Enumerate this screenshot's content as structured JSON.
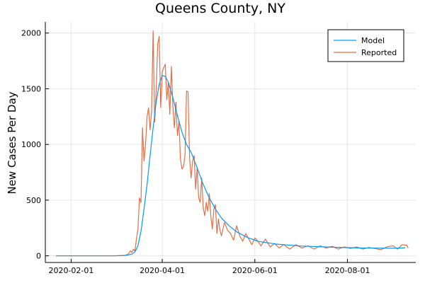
{
  "chart_data": {
    "type": "line",
    "title": "Queens County, NY",
    "xlabel": "",
    "ylabel": "New Cases Per Day",
    "x_axis_kind": "date",
    "xlim": [
      "2020-01-15",
      "2020-09-15"
    ],
    "ylim": [
      -60,
      2100
    ],
    "grid": true,
    "legend_position": "top-right",
    "x_ticks": [
      {
        "label": "2020-02-01",
        "value": "2020-02-01"
      },
      {
        "label": "2020-04-01",
        "value": "2020-04-01"
      },
      {
        "label": "2020-06-01",
        "value": "2020-06-01"
      },
      {
        "label": "2020-08-01",
        "value": "2020-08-01"
      }
    ],
    "y_ticks": [
      0,
      500,
      1000,
      1500,
      2000
    ],
    "series": [
      {
        "name": "Model",
        "color": "#009af9",
        "points": [
          [
            "2020-01-22",
            0
          ],
          [
            "2020-02-15",
            0
          ],
          [
            "2020-03-01",
            0
          ],
          [
            "2020-03-08",
            3
          ],
          [
            "2020-03-12",
            15
          ],
          [
            "2020-03-14",
            35
          ],
          [
            "2020-03-16",
            90
          ],
          [
            "2020-03-18",
            220
          ],
          [
            "2020-03-20",
            420
          ],
          [
            "2020-03-22",
            640
          ],
          [
            "2020-03-24",
            900
          ],
          [
            "2020-03-26",
            1150
          ],
          [
            "2020-03-28",
            1380
          ],
          [
            "2020-03-30",
            1540
          ],
          [
            "2020-04-01",
            1620
          ],
          [
            "2020-04-03",
            1610
          ],
          [
            "2020-04-05",
            1560
          ],
          [
            "2020-04-08",
            1420
          ],
          [
            "2020-04-11",
            1260
          ],
          [
            "2020-04-14",
            1110
          ],
          [
            "2020-04-17",
            1000
          ],
          [
            "2020-04-20",
            930
          ],
          [
            "2020-04-24",
            790
          ],
          [
            "2020-04-28",
            640
          ],
          [
            "2020-05-02",
            520
          ],
          [
            "2020-05-06",
            420
          ],
          [
            "2020-05-10",
            340
          ],
          [
            "2020-05-15",
            270
          ],
          [
            "2020-05-20",
            215
          ],
          [
            "2020-05-27",
            165
          ],
          [
            "2020-06-03",
            130
          ],
          [
            "2020-06-15",
            105
          ],
          [
            "2020-07-01",
            88
          ],
          [
            "2020-07-20",
            78
          ],
          [
            "2020-08-10",
            70
          ],
          [
            "2020-09-01",
            68
          ],
          [
            "2020-09-08",
            72
          ]
        ]
      },
      {
        "name": "Reported",
        "color": "#e26f46",
        "points": [
          [
            "2020-01-22",
            0
          ],
          [
            "2020-02-15",
            0
          ],
          [
            "2020-03-01",
            0
          ],
          [
            "2020-03-05",
            2
          ],
          [
            "2020-03-08",
            5
          ],
          [
            "2020-03-10",
            20
          ],
          [
            "2020-03-11",
            45
          ],
          [
            "2020-03-12",
            30
          ],
          [
            "2020-03-13",
            60
          ],
          [
            "2020-03-14",
            40
          ],
          [
            "2020-03-15",
            150
          ],
          [
            "2020-03-16",
            240
          ],
          [
            "2020-03-17",
            520
          ],
          [
            "2020-03-18",
            480
          ],
          [
            "2020-03-19",
            1150
          ],
          [
            "2020-03-20",
            850
          ],
          [
            "2020-03-21",
            1000
          ],
          [
            "2020-03-22",
            1250
          ],
          [
            "2020-03-23",
            1330
          ],
          [
            "2020-03-24",
            1130
          ],
          [
            "2020-03-25",
            1300
          ],
          [
            "2020-03-26",
            2020
          ],
          [
            "2020-03-27",
            1200
          ],
          [
            "2020-03-28",
            1480
          ],
          [
            "2020-03-29",
            1900
          ],
          [
            "2020-03-30",
            1970
          ],
          [
            "2020-03-31",
            1330
          ],
          [
            "2020-04-01",
            1650
          ],
          [
            "2020-04-02",
            1690
          ],
          [
            "2020-04-03",
            1720
          ],
          [
            "2020-04-04",
            1400
          ],
          [
            "2020-04-05",
            1560
          ],
          [
            "2020-04-06",
            1270
          ],
          [
            "2020-04-07",
            1700
          ],
          [
            "2020-04-08",
            1340
          ],
          [
            "2020-04-09",
            1150
          ],
          [
            "2020-04-10",
            1380
          ],
          [
            "2020-04-11",
            1080
          ],
          [
            "2020-04-12",
            1200
          ],
          [
            "2020-04-13",
            870
          ],
          [
            "2020-04-14",
            780
          ],
          [
            "2020-04-15",
            800
          ],
          [
            "2020-04-16",
            900
          ],
          [
            "2020-04-17",
            1480
          ],
          [
            "2020-04-18",
            1470
          ],
          [
            "2020-04-19",
            880
          ],
          [
            "2020-04-20",
            700
          ],
          [
            "2020-04-21",
            850
          ],
          [
            "2020-04-22",
            900
          ],
          [
            "2020-04-23",
            600
          ],
          [
            "2020-04-24",
            790
          ],
          [
            "2020-04-25",
            520
          ],
          [
            "2020-04-26",
            480
          ],
          [
            "2020-04-27",
            700
          ],
          [
            "2020-04-28",
            430
          ],
          [
            "2020-04-29",
            360
          ],
          [
            "2020-04-30",
            480
          ],
          [
            "2020-05-01",
            400
          ],
          [
            "2020-05-02",
            560
          ],
          [
            "2020-05-03",
            350
          ],
          [
            "2020-05-04",
            240
          ],
          [
            "2020-05-05",
            420
          ],
          [
            "2020-05-06",
            460
          ],
          [
            "2020-05-07",
            200
          ],
          [
            "2020-05-08",
            330
          ],
          [
            "2020-05-09",
            230
          ],
          [
            "2020-05-10",
            180
          ],
          [
            "2020-05-12",
            300
          ],
          [
            "2020-05-14",
            230
          ],
          [
            "2020-05-16",
            200
          ],
          [
            "2020-05-18",
            140
          ],
          [
            "2020-05-20",
            270
          ],
          [
            "2020-05-22",
            180
          ],
          [
            "2020-05-24",
            130
          ],
          [
            "2020-05-26",
            200
          ],
          [
            "2020-05-28",
            150
          ],
          [
            "2020-05-30",
            100
          ],
          [
            "2020-06-01",
            160
          ],
          [
            "2020-06-03",
            130
          ],
          [
            "2020-06-05",
            90
          ],
          [
            "2020-06-08",
            150
          ],
          [
            "2020-06-11",
            80
          ],
          [
            "2020-06-14",
            110
          ],
          [
            "2020-06-17",
            70
          ],
          [
            "2020-06-20",
            100
          ],
          [
            "2020-06-24",
            60
          ],
          [
            "2020-06-28",
            100
          ],
          [
            "2020-07-02",
            70
          ],
          [
            "2020-07-06",
            90
          ],
          [
            "2020-07-10",
            60
          ],
          [
            "2020-07-14",
            90
          ],
          [
            "2020-07-18",
            70
          ],
          [
            "2020-07-22",
            85
          ],
          [
            "2020-07-26",
            60
          ],
          [
            "2020-07-30",
            80
          ],
          [
            "2020-08-03",
            65
          ],
          [
            "2020-08-07",
            80
          ],
          [
            "2020-08-11",
            60
          ],
          [
            "2020-08-15",
            75
          ],
          [
            "2020-08-19",
            65
          ],
          [
            "2020-08-23",
            55
          ],
          [
            "2020-08-27",
            80
          ],
          [
            "2020-08-31",
            90
          ],
          [
            "2020-09-03",
            60
          ],
          [
            "2020-09-06",
            100
          ],
          [
            "2020-09-09",
            95
          ],
          [
            "2020-09-10",
            70
          ]
        ]
      }
    ]
  }
}
